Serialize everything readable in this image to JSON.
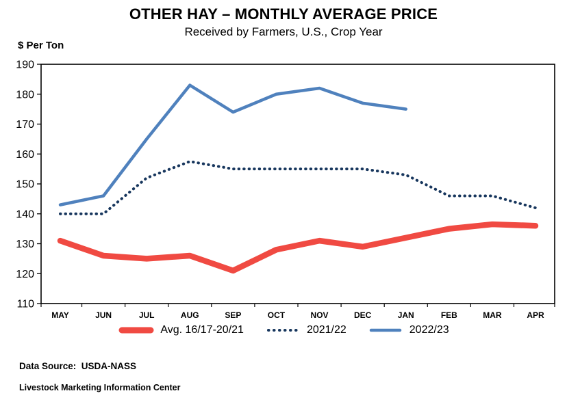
{
  "title": "OTHER HAY – MONTHLY AVERAGE PRICE",
  "subtitle": "Received by Farmers, U.S., Crop Year",
  "y_axis_label": "$ Per Ton",
  "footer": {
    "data_source": "Data Source:  USDA-NASS",
    "org": "Livestock Marketing Information Center"
  },
  "chart_data": {
    "type": "line",
    "title": "OTHER HAY – MONTHLY AVERAGE PRICE",
    "subtitle": "Received by Farmers, U.S., Crop Year",
    "ylabel": "$ Per Ton",
    "ylim": [
      110,
      190
    ],
    "ytick_step": 10,
    "grid": false,
    "legend_position": "bottom",
    "categories": [
      "MAY",
      "JUN",
      "JUL",
      "AUG",
      "SEP",
      "OCT",
      "NOV",
      "DEC",
      "JAN",
      "FEB",
      "MAR",
      "APR"
    ],
    "series": [
      {
        "name": "Avg. 16/17-20/21",
        "color": "#f04a42",
        "style": "solid-thick",
        "values": [
          131,
          126,
          125,
          126,
          121,
          128,
          131,
          129,
          132,
          135,
          136.5,
          136
        ]
      },
      {
        "name": "2021/22",
        "color": "#17365d",
        "style": "dotted",
        "values": [
          140,
          140,
          152,
          157.5,
          155,
          155,
          155,
          155,
          153,
          146,
          146,
          142
        ]
      },
      {
        "name": "2022/23",
        "color": "#4f81bd",
        "style": "solid",
        "values": [
          143,
          146,
          165,
          183,
          174,
          180,
          182,
          177,
          175
        ]
      }
    ]
  }
}
